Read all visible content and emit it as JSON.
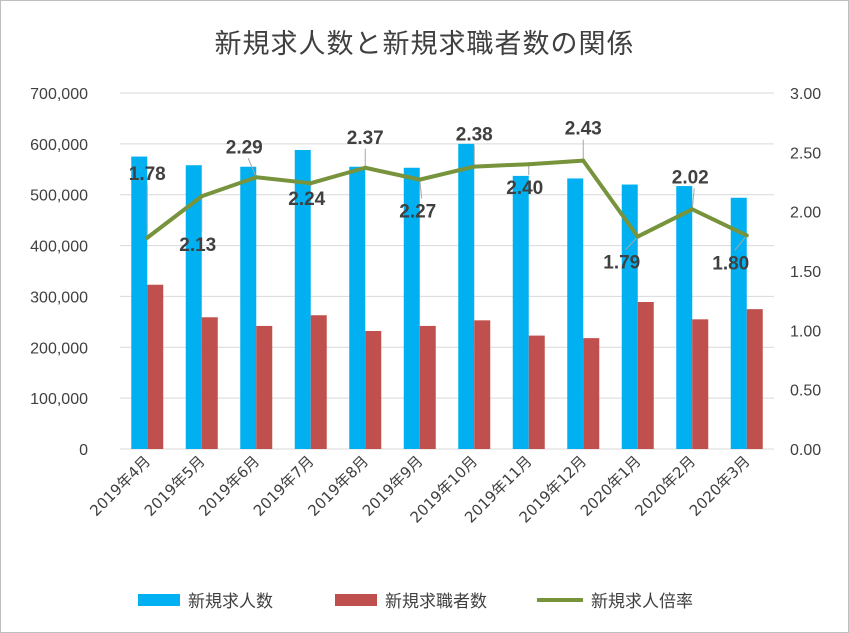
{
  "chart_data": {
    "type": "bar",
    "title": "新規求人数と新規求職者数の関係",
    "categories": [
      "2019年4月",
      "2019年5月",
      "2019年6月",
      "2019年7月",
      "2019年8月",
      "2019年9月",
      "2019年10月",
      "2019年11月",
      "2019年12月",
      "2020年1月",
      "2020年2月",
      "2020年3月"
    ],
    "series": [
      {
        "name": "新規求人数",
        "type": "bar",
        "axis": "left",
        "color": "#00b0f0",
        "values": [
          575000,
          558000,
          555000,
          588000,
          555000,
          553000,
          600000,
          537000,
          532000,
          520000,
          517000,
          494000
        ]
      },
      {
        "name": "新規求職者数",
        "type": "bar",
        "axis": "left",
        "color": "#c0504d",
        "values": [
          323000,
          259000,
          242000,
          263000,
          232000,
          242000,
          253000,
          223000,
          218000,
          289000,
          255000,
          275000
        ]
      },
      {
        "name": "新規求人倍率",
        "type": "line",
        "axis": "right",
        "color": "#77933c",
        "values": [
          1.78,
          2.13,
          2.29,
          2.24,
          2.37,
          2.27,
          2.38,
          2.4,
          2.43,
          1.79,
          2.02,
          1.8
        ],
        "labels": [
          "1.78",
          "2.13",
          "2.29",
          "2.24",
          "2.37",
          "2.27",
          "2.38",
          "2.40",
          "2.43",
          "1.79",
          "2.02",
          "1.80"
        ]
      }
    ],
    "y_left": {
      "ylim": [
        0,
        700000
      ],
      "ticks": [
        "0",
        "100,000",
        "200,000",
        "300,000",
        "400,000",
        "500,000",
        "600,000",
        "700,000"
      ]
    },
    "y_right": {
      "ylim": [
        0,
        3.0
      ],
      "ticks": [
        "0.00",
        "0.50",
        "1.00",
        "1.50",
        "2.00",
        "2.50",
        "3.00"
      ]
    },
    "grid": true,
    "legend": "bottom"
  }
}
